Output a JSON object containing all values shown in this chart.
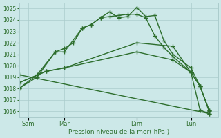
{
  "bg_color": "#cce8e8",
  "grid_color": "#aacccc",
  "line_color": "#2d6e2d",
  "marker": "+",
  "markersize": 4,
  "linewidth": 1.0,
  "xlabel": "Pression niveau de la mer( hPa )",
  "ylim": [
    1015.5,
    1025.5
  ],
  "yticks": [
    1016,
    1017,
    1018,
    1019,
    1020,
    1021,
    1022,
    1023,
    1024,
    1025
  ],
  "xlim": [
    0,
    22
  ],
  "xtick_positions": [
    1,
    5,
    13,
    19
  ],
  "xtick_labels": [
    "Sam",
    "Mar",
    "Dim",
    "Lun"
  ],
  "series": [
    {
      "x": [
        0,
        2,
        4,
        5,
        7,
        8,
        9,
        10,
        11,
        12,
        13,
        14,
        15,
        16,
        17,
        19,
        20,
        21
      ],
      "y": [
        1018.0,
        1019.0,
        1021.2,
        1021.2,
        1023.3,
        1023.6,
        1024.2,
        1024.7,
        1024.2,
        1024.3,
        1025.1,
        1024.3,
        1024.4,
        1022.2,
        1021.0,
        1019.8,
        1018.2,
        1016.0
      ]
    },
    {
      "x": [
        0,
        2,
        4,
        5,
        6,
        7,
        8,
        9,
        10,
        11,
        12,
        13,
        14,
        15,
        16,
        17,
        19,
        20,
        21
      ],
      "y": [
        1018.0,
        1019.2,
        1021.2,
        1021.5,
        1022.0,
        1023.3,
        1023.6,
        1024.2,
        1024.3,
        1024.4,
        1024.5,
        1024.5,
        1024.2,
        1022.6,
        1021.6,
        1020.8,
        1019.4,
        1016.1,
        1015.8
      ]
    },
    {
      "x": [
        0,
        3,
        5,
        13,
        17,
        19,
        20,
        21
      ],
      "y": [
        1018.5,
        1019.5,
        1019.8,
        1022.0,
        1021.7,
        1019.4,
        1018.2,
        1016.1
      ]
    },
    {
      "x": [
        0,
        3,
        5,
        13,
        17,
        19,
        20,
        21
      ],
      "y": [
        1018.5,
        1019.5,
        1019.8,
        1021.2,
        1020.5,
        1019.4,
        1018.2,
        1016.1
      ]
    },
    {
      "x": [
        0,
        21
      ],
      "y": [
        1019.2,
        1015.8
      ]
    }
  ]
}
